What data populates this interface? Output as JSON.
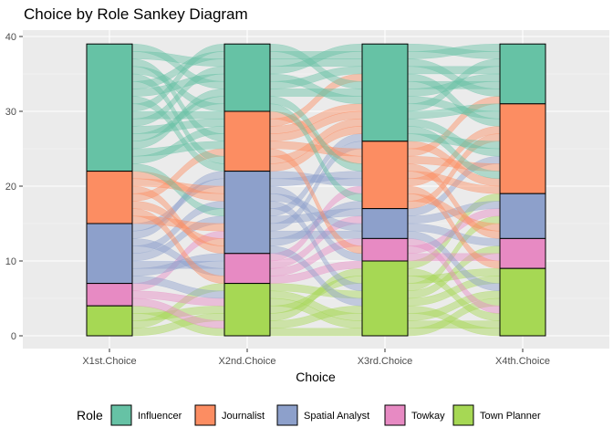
{
  "chart_data": {
    "type": "sankey",
    "title": "Choice by Role Sankey Diagram",
    "xlabel": "Choice",
    "ylabel": "",
    "ylim": [
      0,
      40
    ],
    "yticks": [
      0,
      10,
      20,
      30,
      40
    ],
    "grid": true,
    "legend_position": "bottom",
    "legend_title": "Role",
    "categories": [
      "X1st.Choice",
      "X2nd.Choice",
      "X3rd.Choice",
      "X4th.Choice"
    ],
    "series": [
      {
        "name": "Influencer",
        "color": "#66c2a5",
        "values": [
          17,
          9,
          13,
          8
        ]
      },
      {
        "name": "Journalist",
        "color": "#fc8d62",
        "values": [
          7,
          8,
          9,
          12
        ]
      },
      {
        "name": "Spatial Analyst",
        "color": "#8da0cb",
        "values": [
          8,
          11,
          4,
          6
        ]
      },
      {
        "name": "Towkay",
        "color": "#e78ac3",
        "values": [
          3,
          4,
          3,
          4
        ]
      },
      {
        "name": "Town Planner",
        "color": "#a6d854",
        "values": [
          4,
          7,
          10,
          9
        ]
      }
    ]
  }
}
